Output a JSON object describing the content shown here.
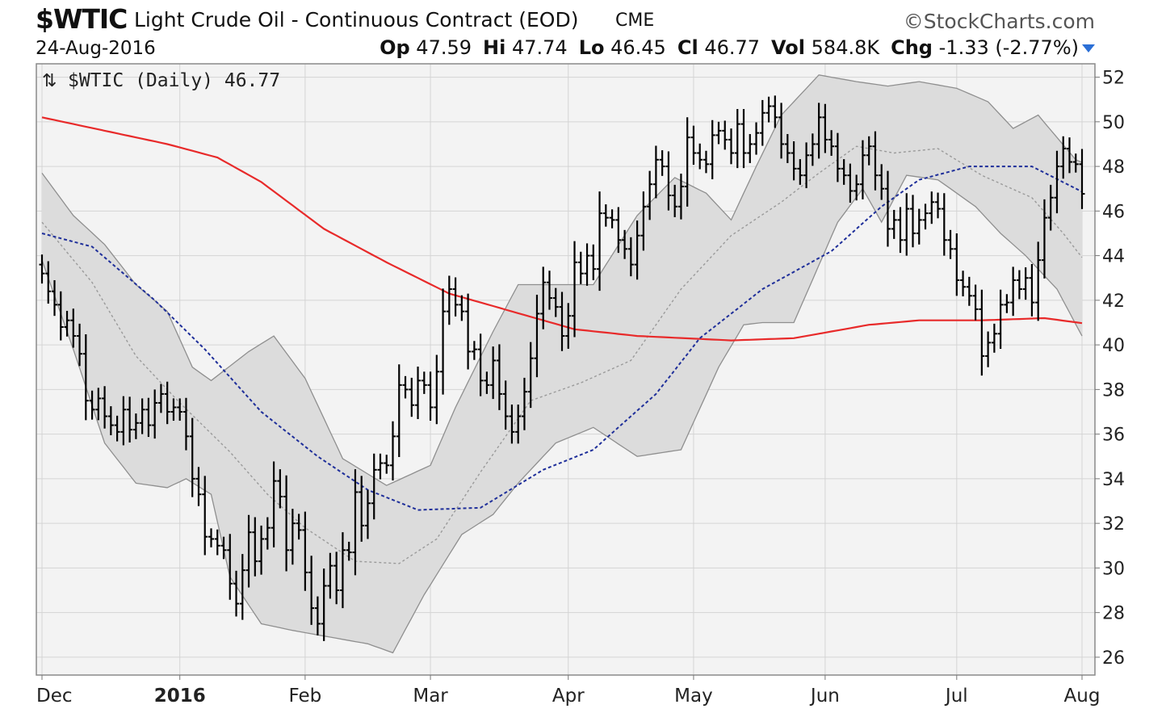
{
  "header": {
    "symbol": "$WTIC",
    "description": "Light Crude Oil - Continuous Contract (EOD)",
    "exchange": "CME",
    "brand": "©StockCharts.com",
    "date": "24-Aug-2016",
    "open_label": "Op",
    "open": "47.59",
    "high_label": "Hi",
    "high": "47.74",
    "low_label": "Lo",
    "low": "46.45",
    "close_label": "Cl",
    "close": "46.77",
    "vol_label": "Vol",
    "vol": "584.8K",
    "chg_label": "Chg",
    "chg": "-1.33 (-2.77%)"
  },
  "legend": "$WTIC (Daily) 46.77",
  "colors": {
    "price_bars": "#000000",
    "sma200": "#e82a2a",
    "sma50": "#1f2f9a",
    "bollinger_band": "#dcdcdc",
    "bollinger_mid": "#9a9a9a",
    "grid": "#d4d4d4",
    "plot_bg": "#f3f3f3"
  },
  "chart_data": {
    "type": "ohlc",
    "title": "$WTIC (Daily) 46.77",
    "xlabel": "",
    "ylabel": "",
    "ylim": [
      25.2,
      52.6
    ],
    "y_ticks": [
      26,
      28,
      30,
      32,
      34,
      36,
      38,
      40,
      42,
      44,
      46,
      48,
      50,
      52
    ],
    "y_axis_side": "right",
    "grid": true,
    "x_tick_labels": [
      {
        "label": "Dec",
        "bold": false,
        "day": 0
      },
      {
        "label": "2016",
        "bold": true,
        "day": 22
      },
      {
        "label": "Feb",
        "bold": false,
        "day": 42
      },
      {
        "label": "Mar",
        "bold": false,
        "day": 62
      },
      {
        "label": "Apr",
        "bold": false,
        "day": 84
      },
      {
        "label": "May",
        "bold": false,
        "day": 104
      },
      {
        "label": "Jun",
        "bold": false,
        "day": 125
      },
      {
        "label": "Jul",
        "bold": false,
        "day": 146
      },
      {
        "label": "Aug",
        "bold": false,
        "day": 166
      }
    ],
    "price_closes": [
      43.2,
      42.4,
      41.8,
      40.8,
      41.1,
      40.4,
      39.6,
      37.5,
      37.1,
      37.6,
      36.8,
      36.4,
      36.1,
      37.1,
      36.2,
      36.5,
      37.1,
      36.4,
      37.4,
      37.8,
      37.0,
      37.2,
      37.0,
      35.9,
      34.0,
      33.3,
      31.4,
      31.3,
      31.0,
      30.8,
      29.3,
      28.4,
      29.9,
      31.6,
      30.3,
      31.3,
      31.8,
      33.9,
      33.2,
      30.8,
      32.0,
      31.7,
      29.8,
      28.2,
      27.5,
      29.2,
      30.1,
      29.0,
      30.8,
      30.7,
      33.4,
      31.9,
      32.9,
      34.4,
      34.7,
      34.6,
      35.9,
      38.2,
      38.0,
      37.3,
      38.4,
      38.2,
      37.2,
      38.8,
      41.5,
      42.5,
      41.8,
      41.5,
      39.7,
      39.8,
      38.4,
      38.2,
      39.3,
      37.8,
      36.8,
      36.1,
      36.8,
      37.9,
      39.4,
      41.4,
      42.8,
      42.1,
      41.7,
      40.4,
      41.3,
      43.7,
      43.2,
      44.0,
      43.4,
      45.9,
      45.7,
      45.6,
      44.7,
      44.3,
      43.6,
      44.9,
      46.2,
      47.2,
      48.3,
      48.0,
      46.7,
      46.2,
      47.1,
      49.3,
      48.6,
      48.3,
      48.1,
      49.4,
      49.6,
      49.2,
      48.6,
      49.9,
      48.6,
      49.0,
      49.5,
      50.4,
      50.7,
      50.2,
      49.0,
      48.6,
      47.9,
      47.6,
      48.5,
      49.0,
      50.2,
      49.2,
      48.9,
      47.9,
      47.6,
      46.9,
      47.2,
      48.5,
      48.9,
      47.6,
      47.0,
      45.2,
      45.6,
      44.7,
      46.1,
      45.0,
      45.6,
      45.9,
      46.4,
      46.1,
      44.7,
      44.3,
      42.9,
      42.6,
      42.2,
      41.6,
      39.5,
      40.1,
      40.5,
      41.8,
      41.9,
      42.9,
      42.5,
      43.0,
      41.9,
      43.8,
      45.7,
      46.6,
      48.0,
      48.8,
      48.2,
      48.1,
      46.77
    ],
    "sma200": [
      [
        0,
        50.2
      ],
      [
        10,
        49.6
      ],
      [
        20,
        49.0
      ],
      [
        28,
        48.4
      ],
      [
        35,
        47.3
      ],
      [
        45,
        45.2
      ],
      [
        55,
        43.7
      ],
      [
        65,
        42.3
      ],
      [
        75,
        41.5
      ],
      [
        85,
        40.7
      ],
      [
        95,
        40.4
      ],
      [
        110,
        40.2
      ],
      [
        120,
        40.3
      ],
      [
        132,
        40.9
      ],
      [
        140,
        41.1
      ],
      [
        150,
        41.1
      ],
      [
        160,
        41.2
      ],
      [
        168,
        40.9
      ],
      [
        175,
        40.8
      ],
      [
        184,
        40.8
      ]
    ],
    "sma50": [
      [
        0,
        45.0
      ],
      [
        8,
        44.4
      ],
      [
        18,
        42.0
      ],
      [
        26,
        39.8
      ],
      [
        35,
        37.0
      ],
      [
        44,
        35.0
      ],
      [
        52,
        33.5
      ],
      [
        60,
        32.6
      ],
      [
        70,
        32.7
      ],
      [
        80,
        34.4
      ],
      [
        88,
        35.3
      ],
      [
        98,
        37.8
      ],
      [
        105,
        40.3
      ],
      [
        115,
        42.5
      ],
      [
        126,
        44.2
      ],
      [
        134,
        46.2
      ],
      [
        140,
        47.4
      ],
      [
        148,
        48.0
      ],
      [
        158,
        48.0
      ],
      [
        170,
        46.3
      ],
      [
        178,
        45.8
      ],
      [
        184,
        45.6
      ]
    ],
    "bb_upper": [
      [
        0,
        47.7
      ],
      [
        5,
        45.8
      ],
      [
        10,
        44.5
      ],
      [
        15,
        42.7
      ],
      [
        20,
        41.5
      ],
      [
        24,
        39.0
      ],
      [
        27,
        38.4
      ],
      [
        33,
        39.7
      ],
      [
        37,
        40.4
      ],
      [
        42,
        38.5
      ],
      [
        48,
        34.9
      ],
      [
        55,
        33.7
      ],
      [
        62,
        34.6
      ],
      [
        66,
        37.2
      ],
      [
        72,
        40.6
      ],
      [
        76,
        42.7
      ],
      [
        81,
        42.7
      ],
      [
        88,
        42.7
      ],
      [
        95,
        45.8
      ],
      [
        101,
        47.5
      ],
      [
        106,
        46.8
      ],
      [
        110,
        45.6
      ],
      [
        114,
        48.0
      ],
      [
        118,
        50.3
      ],
      [
        124,
        52.1
      ],
      [
        130,
        51.8
      ],
      [
        135,
        51.6
      ],
      [
        140,
        51.8
      ],
      [
        146,
        51.5
      ],
      [
        151,
        50.9
      ],
      [
        155,
        49.7
      ],
      [
        159,
        50.3
      ],
      [
        165,
        48.3
      ],
      [
        170,
        47.7
      ],
      [
        176,
        45.5
      ],
      [
        180,
        46.6
      ],
      [
        184,
        50.2
      ]
    ],
    "bb_lower": [
      [
        0,
        43.8
      ],
      [
        5,
        39.8
      ],
      [
        10,
        35.6
      ],
      [
        15,
        33.8
      ],
      [
        20,
        33.6
      ],
      [
        23,
        34.0
      ],
      [
        27,
        33.3
      ],
      [
        30,
        29.6
      ],
      [
        35,
        27.5
      ],
      [
        40,
        27.2
      ],
      [
        46,
        26.9
      ],
      [
        52,
        26.6
      ],
      [
        56,
        26.2
      ],
      [
        61,
        28.8
      ],
      [
        67,
        31.5
      ],
      [
        72,
        32.4
      ],
      [
        76,
        33.8
      ],
      [
        82,
        35.6
      ],
      [
        88,
        36.3
      ],
      [
        95,
        35.0
      ],
      [
        102,
        35.3
      ],
      [
        108,
        39.0
      ],
      [
        112,
        40.9
      ],
      [
        115,
        41.0
      ],
      [
        120,
        41.0
      ],
      [
        127,
        45.5
      ],
      [
        131,
        47.0
      ],
      [
        134,
        45.5
      ],
      [
        138,
        47.6
      ],
      [
        143,
        47.4
      ],
      [
        149,
        46.2
      ],
      [
        153,
        45.0
      ],
      [
        157,
        44.0
      ],
      [
        162,
        42.5
      ],
      [
        166,
        40.4
      ],
      [
        170,
        39.1
      ],
      [
        175,
        39.3
      ],
      [
        179,
        38.6
      ],
      [
        182,
        37.9
      ],
      [
        184,
        38.1
      ]
    ],
    "bb_mid": [
      [
        0,
        45.5
      ],
      [
        8,
        42.8
      ],
      [
        15,
        39.5
      ],
      [
        22,
        37.4
      ],
      [
        30,
        35.2
      ],
      [
        36,
        33.3
      ],
      [
        42,
        31.8
      ],
      [
        50,
        30.3
      ],
      [
        57,
        30.2
      ],
      [
        63,
        31.3
      ],
      [
        70,
        34.3
      ],
      [
        78,
        37.5
      ],
      [
        86,
        38.3
      ],
      [
        94,
        39.3
      ],
      [
        102,
        42.5
      ],
      [
        110,
        44.9
      ],
      [
        118,
        46.4
      ],
      [
        124,
        47.7
      ],
      [
        130,
        48.9
      ],
      [
        136,
        48.6
      ],
      [
        143,
        48.8
      ],
      [
        150,
        47.6
      ],
      [
        158,
        46.6
      ],
      [
        163,
        45.0
      ],
      [
        168,
        43.2
      ],
      [
        173,
        42.4
      ],
      [
        176,
        42.4
      ],
      [
        181,
        43.3
      ],
      [
        184,
        44.1
      ]
    ]
  }
}
